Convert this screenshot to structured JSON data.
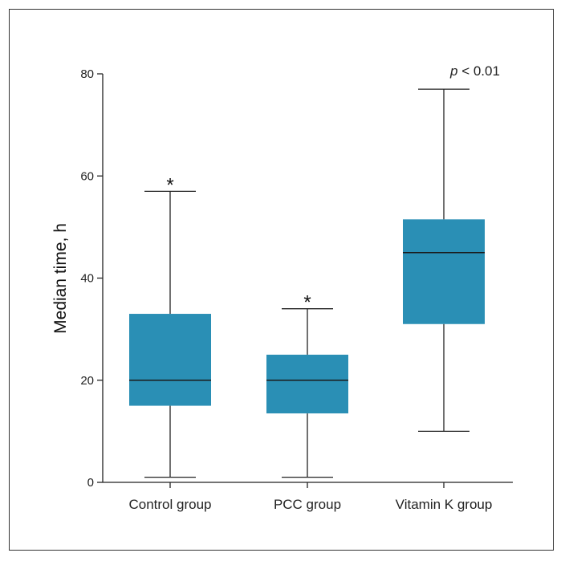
{
  "chart_data": {
    "type": "boxplot",
    "ylabel": "Median time, h",
    "xlabel": "",
    "ylim": [
      0,
      80
    ],
    "yticks": [
      0,
      20,
      40,
      60,
      80
    ],
    "box_color": "#2a8fb5",
    "categories": [
      "Control group",
      "PCC group",
      "Vitamin K group"
    ],
    "boxes": [
      {
        "label": "Control group",
        "min": 1,
        "q1": 15,
        "median": 20,
        "q3": 33,
        "max": 57,
        "marker": "*"
      },
      {
        "label": "PCC group",
        "min": 1,
        "q1": 13.5,
        "median": 20,
        "q3": 25,
        "max": 34,
        "marker": "*"
      },
      {
        "label": "Vitamin K group",
        "min": 10,
        "q1": 31,
        "median": 45,
        "q3": 51.5,
        "max": 77,
        "marker": ""
      }
    ],
    "annotation": {
      "italic": "p",
      "rest": " < 0.01"
    }
  }
}
